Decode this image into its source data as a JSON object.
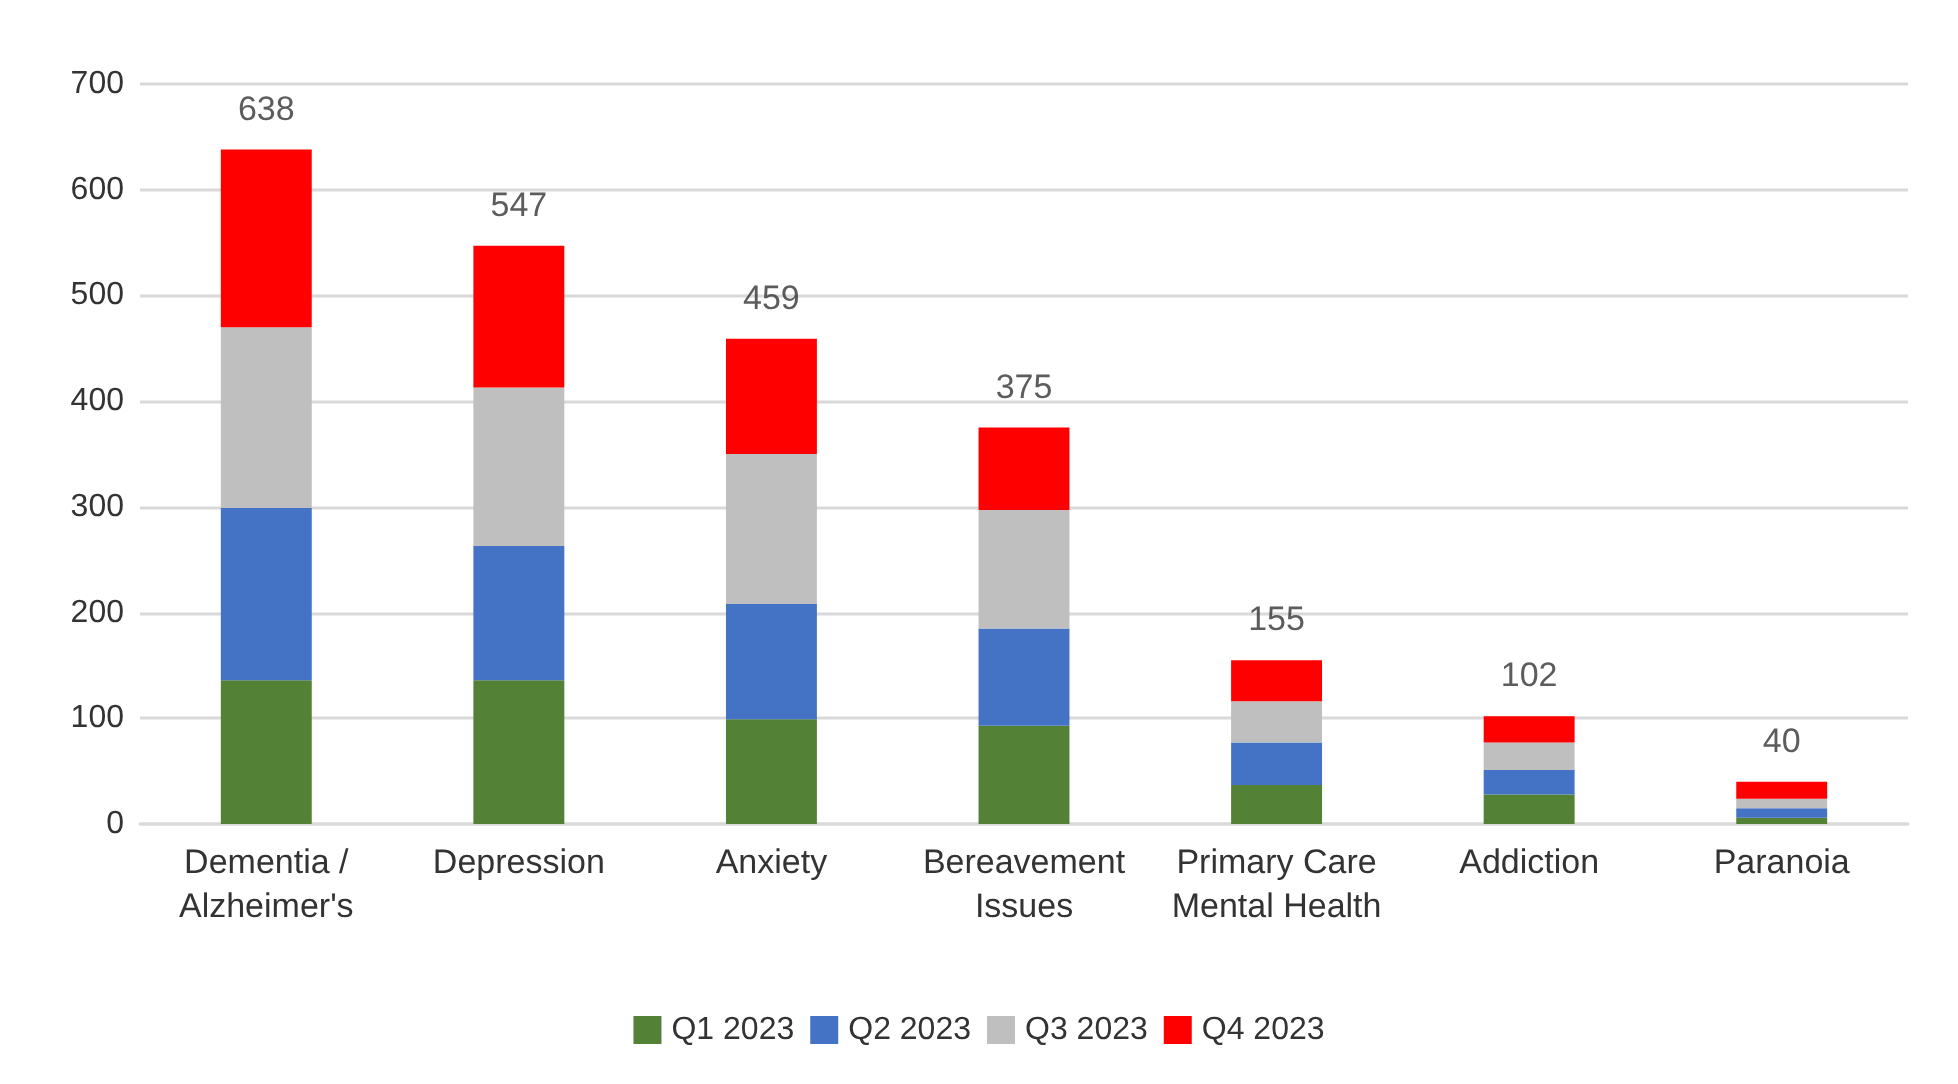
{
  "chart_data": {
    "type": "bar",
    "stacked": true,
    "categories": [
      "Dementia /\nAlzheimer's",
      "Depression",
      "Anxiety",
      "Bereavement\nIssues",
      "Primary Care\nMental Health",
      "Addiction",
      "Paranoia"
    ],
    "series": [
      {
        "name": "Q1 2023",
        "color": "#538135",
        "values": [
          136,
          136,
          99,
          93,
          37,
          28,
          6
        ]
      },
      {
        "name": "Q2 2023",
        "color": "#4472c4",
        "values": [
          163,
          127,
          109,
          92,
          40,
          23,
          9
        ]
      },
      {
        "name": "Q3 2023",
        "color": "#bfbfbf",
        "values": [
          171,
          150,
          142,
          112,
          39,
          26,
          9
        ]
      },
      {
        "name": "Q4 2023",
        "color": "#ff0000",
        "values": [
          168,
          134,
          109,
          78,
          39,
          25,
          16
        ]
      }
    ],
    "totals": [
      "638",
      "547",
      "459",
      "375",
      "155",
      "102",
      "40"
    ],
    "ylim": [
      0,
      700
    ],
    "yticks": [
      0,
      100,
      200,
      300,
      400,
      500,
      600,
      700
    ],
    "grid": "y",
    "legend": "bottom"
  }
}
